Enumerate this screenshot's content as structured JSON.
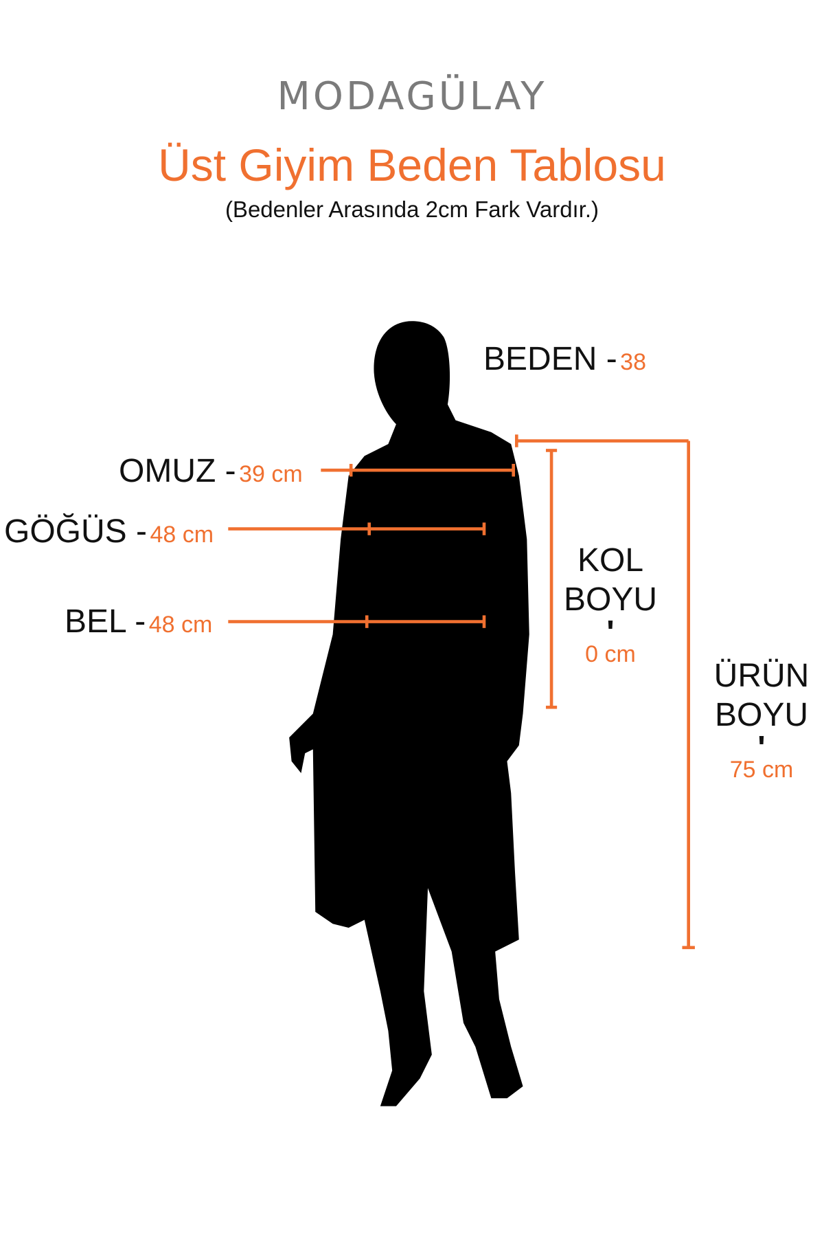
{
  "brand": {
    "logo_text": "MODAGÜLAY"
  },
  "header": {
    "title": "Üst Giyim Beden Tablosu",
    "subtitle": "(Bedenler Arasında 2cm Fark Vardır.)"
  },
  "measurements": {
    "beden": {
      "label": "BEDEN -",
      "value": "38"
    },
    "omuz": {
      "label": "OMUZ -",
      "value": "39 cm"
    },
    "gogus": {
      "label": "GÖĞÜS -",
      "value": "48 cm"
    },
    "bel": {
      "label": "BEL -",
      "value": "48 cm"
    },
    "kol_boyu": {
      "line1": "KOL",
      "line2": "BOYU",
      "separator": "'",
      "value": "0 cm"
    },
    "urun_boyu": {
      "line1": "ÜRÜN",
      "line2": "BOYU",
      "separator": "'",
      "value": "75 cm"
    }
  },
  "colors": {
    "accent": "#f07030",
    "text": "#111111",
    "logo": "#7b7b7b",
    "silhouette": "#000000"
  }
}
